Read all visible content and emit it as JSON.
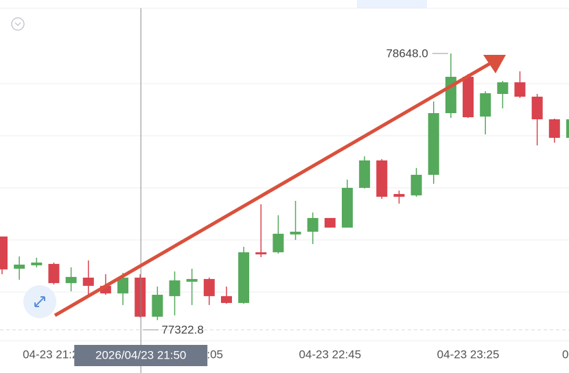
{
  "chart_data": {
    "type": "candlestick",
    "categories": [
      null,
      null,
      null,
      "04-23 21:25",
      null,
      null,
      null,
      null,
      null,
      null,
      null,
      "04-23 22:05",
      null,
      null,
      null,
      null,
      null,
      null,
      null,
      "04-23 22:45",
      null,
      null,
      null,
      null,
      null,
      null,
      null,
      "04-23 23:25",
      null,
      null,
      null,
      null,
      null,
      null
    ],
    "open": [
      77738.3,
      77578.2,
      77595.2,
      77602.1,
      77506.7,
      77533.9,
      77493.0,
      77455.5,
      77533.9,
      77339.7,
      77441.9,
      77513.5,
      77527.1,
      77441.9,
      77407.9,
      77660.0,
      77660.0,
      77748.6,
      77762.2,
      77830.3,
      77782.6,
      77980.2,
      78116.5,
      77949.6,
      77942.8,
      78045.0,
      78351.6,
      78532.2,
      78334.6,
      78447.0,
      78504.9,
      78433.4,
      78320.9,
      78228.9
    ],
    "high": [
      77738.3,
      77639.5,
      77632.7,
      77608.9,
      77585.0,
      77619.1,
      77550.9,
      77557.8,
      77550.9,
      77489.6,
      77564.6,
      77578.2,
      77533.9,
      77489.6,
      77687.2,
      77898.5,
      77843.9,
      77915.5,
      77857.6,
      77830.3,
      78021.1,
      78136.9,
      78123.3,
      77966.6,
      78079.0,
      78409.5,
      78648.0,
      78545.8,
      78460.6,
      78511.7,
      78559.4,
      78447.0,
      78324.3,
      78324.3
    ],
    "low": [
      77550.9,
      77523.7,
      77585.0,
      77499.8,
      77465.8,
      77448.7,
      77448.7,
      77397.6,
      77336.3,
      77322.8,
      77346.5,
      77397.6,
      77397.6,
      77404.4,
      77404.4,
      77636.1,
      77653.2,
      77721.3,
      77700.9,
      77782.6,
      77782.6,
      77976.8,
      77925.7,
      77901.9,
      77935.9,
      78000.7,
      78327.7,
      78327.7,
      78246.0,
      78375.4,
      78426.5,
      78191.5,
      78205.1,
      78228.9
    ],
    "close": [
      77574.8,
      77598.6,
      77608.9,
      77506.7,
      77537.3,
      77493.0,
      77455.5,
      77533.9,
      77339.7,
      77448.7,
      77520.3,
      77527.1,
      77441.9,
      77407.9,
      77660.0,
      77649.7,
      77752.0,
      77762.2,
      77830.3,
      77782.6,
      77980.2,
      78116.5,
      77935.9,
      77935.9,
      78045.0,
      78351.6,
      78532.2,
      78331.1,
      78450.4,
      78504.9,
      78433.4,
      78320.9,
      78228.9,
      78320.9
    ],
    "up_color": "#55a95b",
    "down_color": "#d8434d",
    "ylim": [
      77220,
      78914
    ],
    "max_label": "78648.0",
    "min_label": "77322.8",
    "crosshair_index": 8,
    "crosshair_label": "2026/04/23 21:50",
    "edge_label": "0"
  }
}
